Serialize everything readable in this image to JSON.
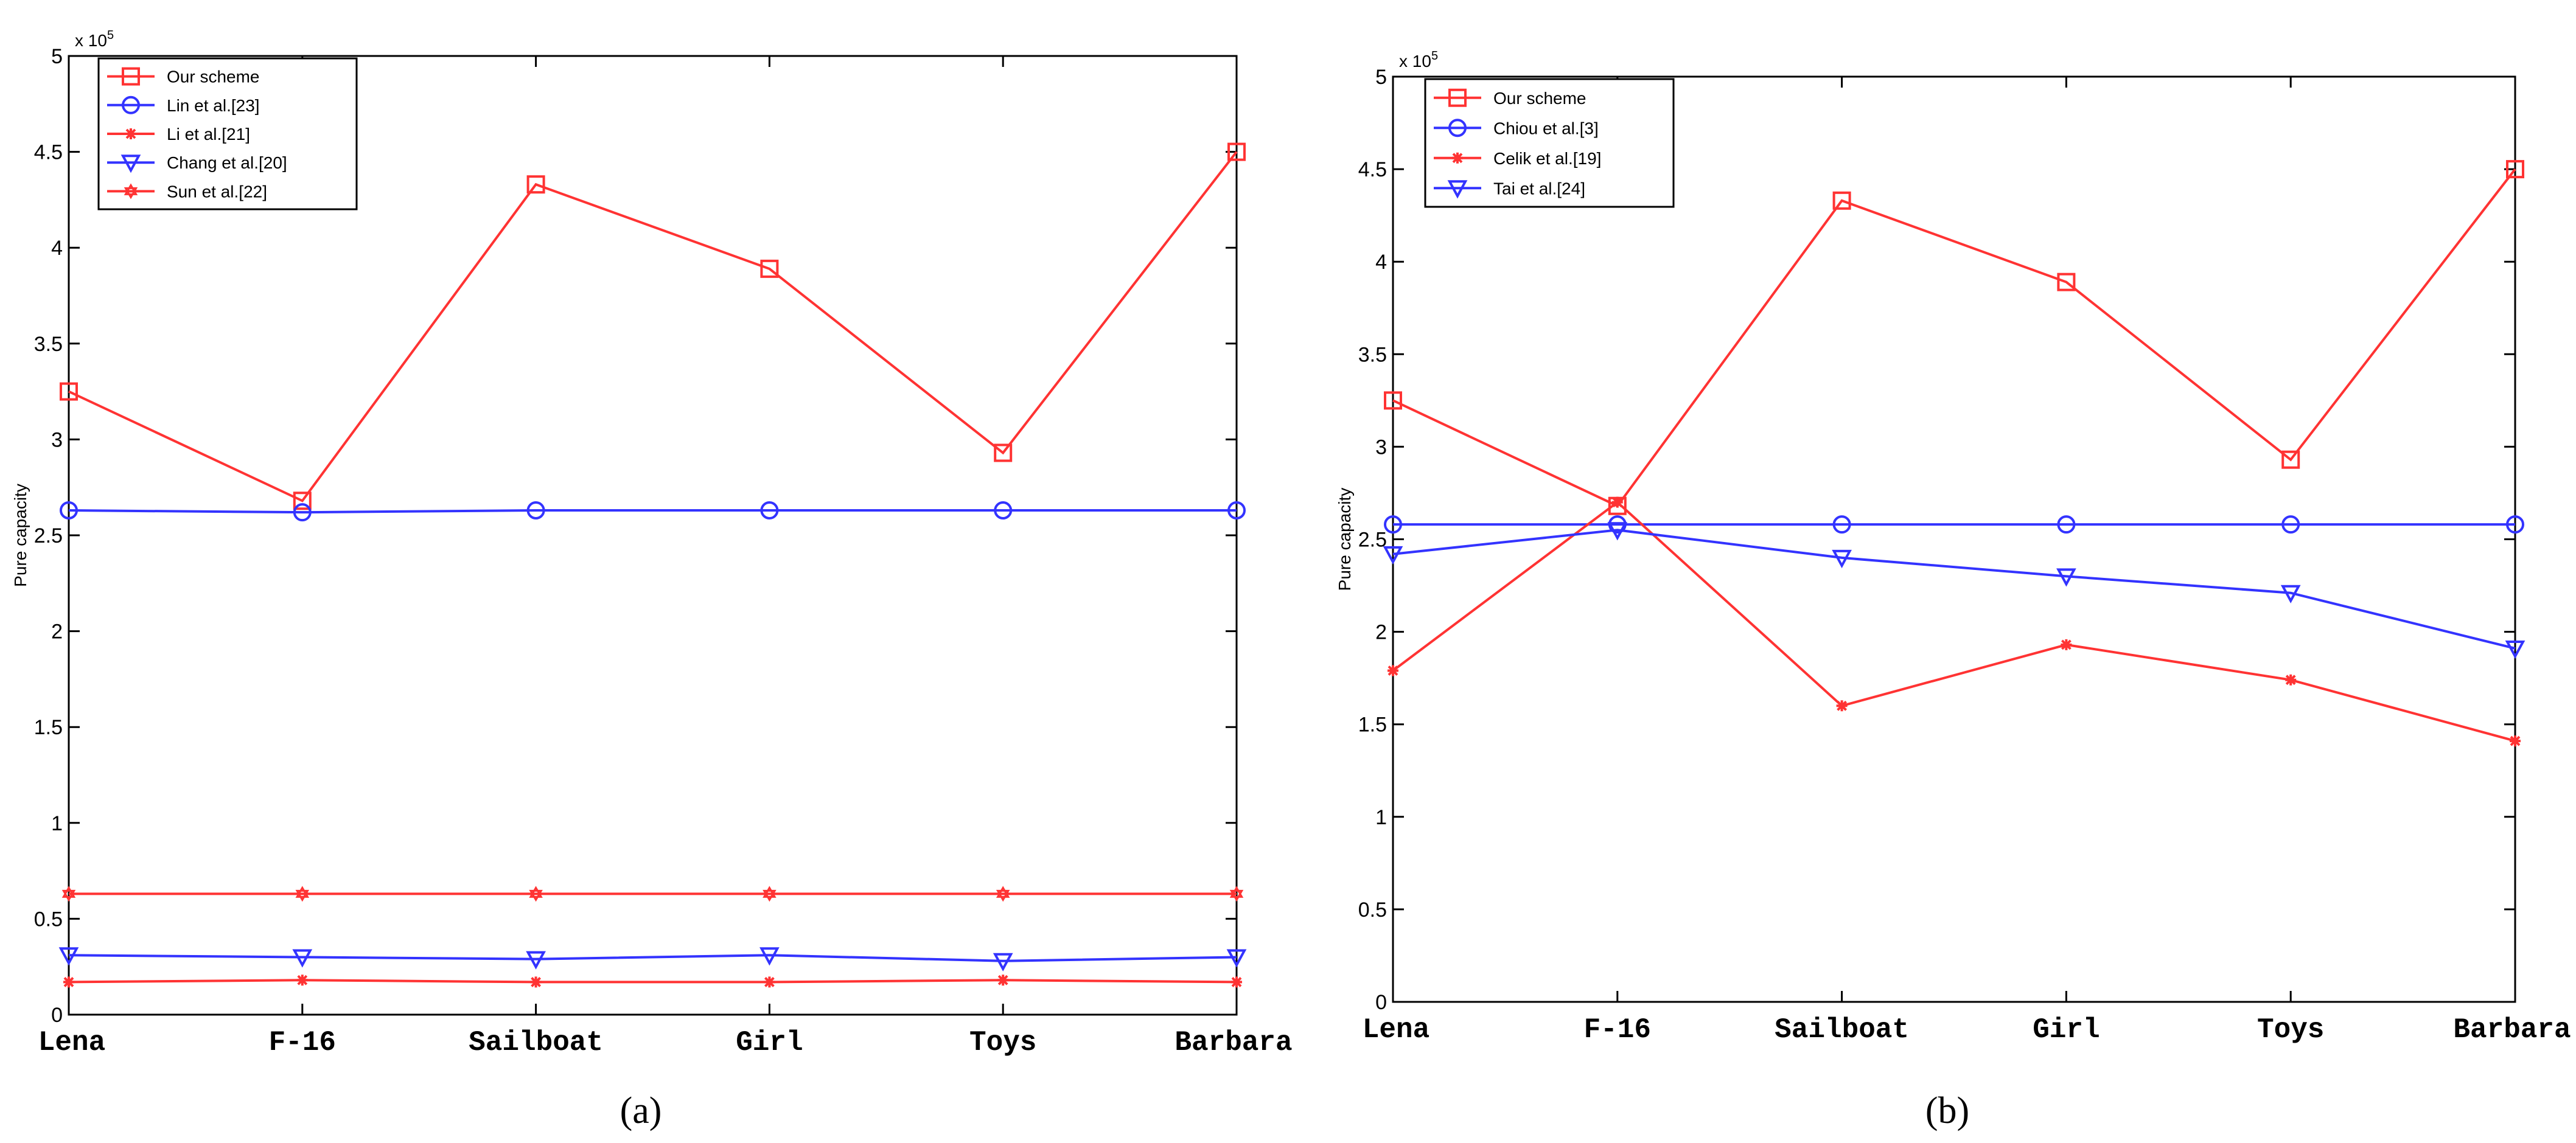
{
  "chart_data": [
    {
      "panel_label": "(a)",
      "type": "line",
      "title": "",
      "xlabel": "",
      "ylabel": "Pure capacity",
      "y_multiplier": "x 10",
      "y_multiplier_exp": "5",
      "ylim": [
        0,
        5
      ],
      "yticks": [
        "0",
        "0.5",
        "1",
        "1.5",
        "2",
        "2.5",
        "3",
        "3.5",
        "4",
        "4.5",
        "5"
      ],
      "categories": [
        "Lena",
        "F-16",
        "Sailboat",
        "Girl",
        "Toys",
        "Barbara"
      ],
      "legend_position": "top-left",
      "series": [
        {
          "name": "Our scheme",
          "color": "#ff3333",
          "marker": "square",
          "values": [
            3.25,
            2.68,
            4.33,
            3.89,
            2.93,
            4.5
          ]
        },
        {
          "name": "Lin et al.[23]",
          "color": "#3333ff",
          "marker": "circle",
          "values": [
            2.63,
            2.62,
            2.63,
            2.63,
            2.63,
            2.63
          ]
        },
        {
          "name": "Li et al.[21]",
          "color": "#ff3333",
          "marker": "star",
          "values": [
            0.17,
            0.18,
            0.17,
            0.17,
            0.18,
            0.17
          ]
        },
        {
          "name": "Chang et al.[20]",
          "color": "#3333ff",
          "marker": "triangle-down",
          "values": [
            0.31,
            0.3,
            0.29,
            0.31,
            0.28,
            0.3
          ]
        },
        {
          "name": "Sun et al.[22]",
          "color": "#ff3333",
          "marker": "hexagram",
          "values": [
            0.63,
            0.63,
            0.63,
            0.63,
            0.63,
            0.63
          ]
        }
      ]
    },
    {
      "panel_label": "(b)",
      "type": "line",
      "title": "",
      "xlabel": "",
      "ylabel": "Pure capacity",
      "y_multiplier": "x 10",
      "y_multiplier_exp": "5",
      "ylim": [
        0,
        5
      ],
      "yticks": [
        "0",
        "0.5",
        "1",
        "1.5",
        "2",
        "2.5",
        "3",
        "3.5",
        "4",
        "4.5",
        "5"
      ],
      "categories": [
        "Lena",
        "F-16",
        "Sailboat",
        "Girl",
        "Toys",
        "Barbara"
      ],
      "legend_position": "top-left",
      "series": [
        {
          "name": "Our scheme",
          "color": "#ff3333",
          "marker": "square",
          "values": [
            3.25,
            2.68,
            4.33,
            3.89,
            2.93,
            4.5
          ]
        },
        {
          "name": "Chiou et al.[3]",
          "color": "#3333ff",
          "marker": "circle",
          "values": [
            2.58,
            2.58,
            2.58,
            2.58,
            2.58,
            2.58
          ]
        },
        {
          "name": "Celik et al.[19]",
          "color": "#ff3333",
          "marker": "star",
          "values": [
            1.79,
            2.7,
            1.6,
            1.93,
            1.74,
            1.41
          ]
        },
        {
          "name": "Tai et al.[24]",
          "color": "#3333ff",
          "marker": "triangle-down",
          "values": [
            2.42,
            2.55,
            2.4,
            2.3,
            2.21,
            1.91
          ]
        }
      ]
    }
  ]
}
